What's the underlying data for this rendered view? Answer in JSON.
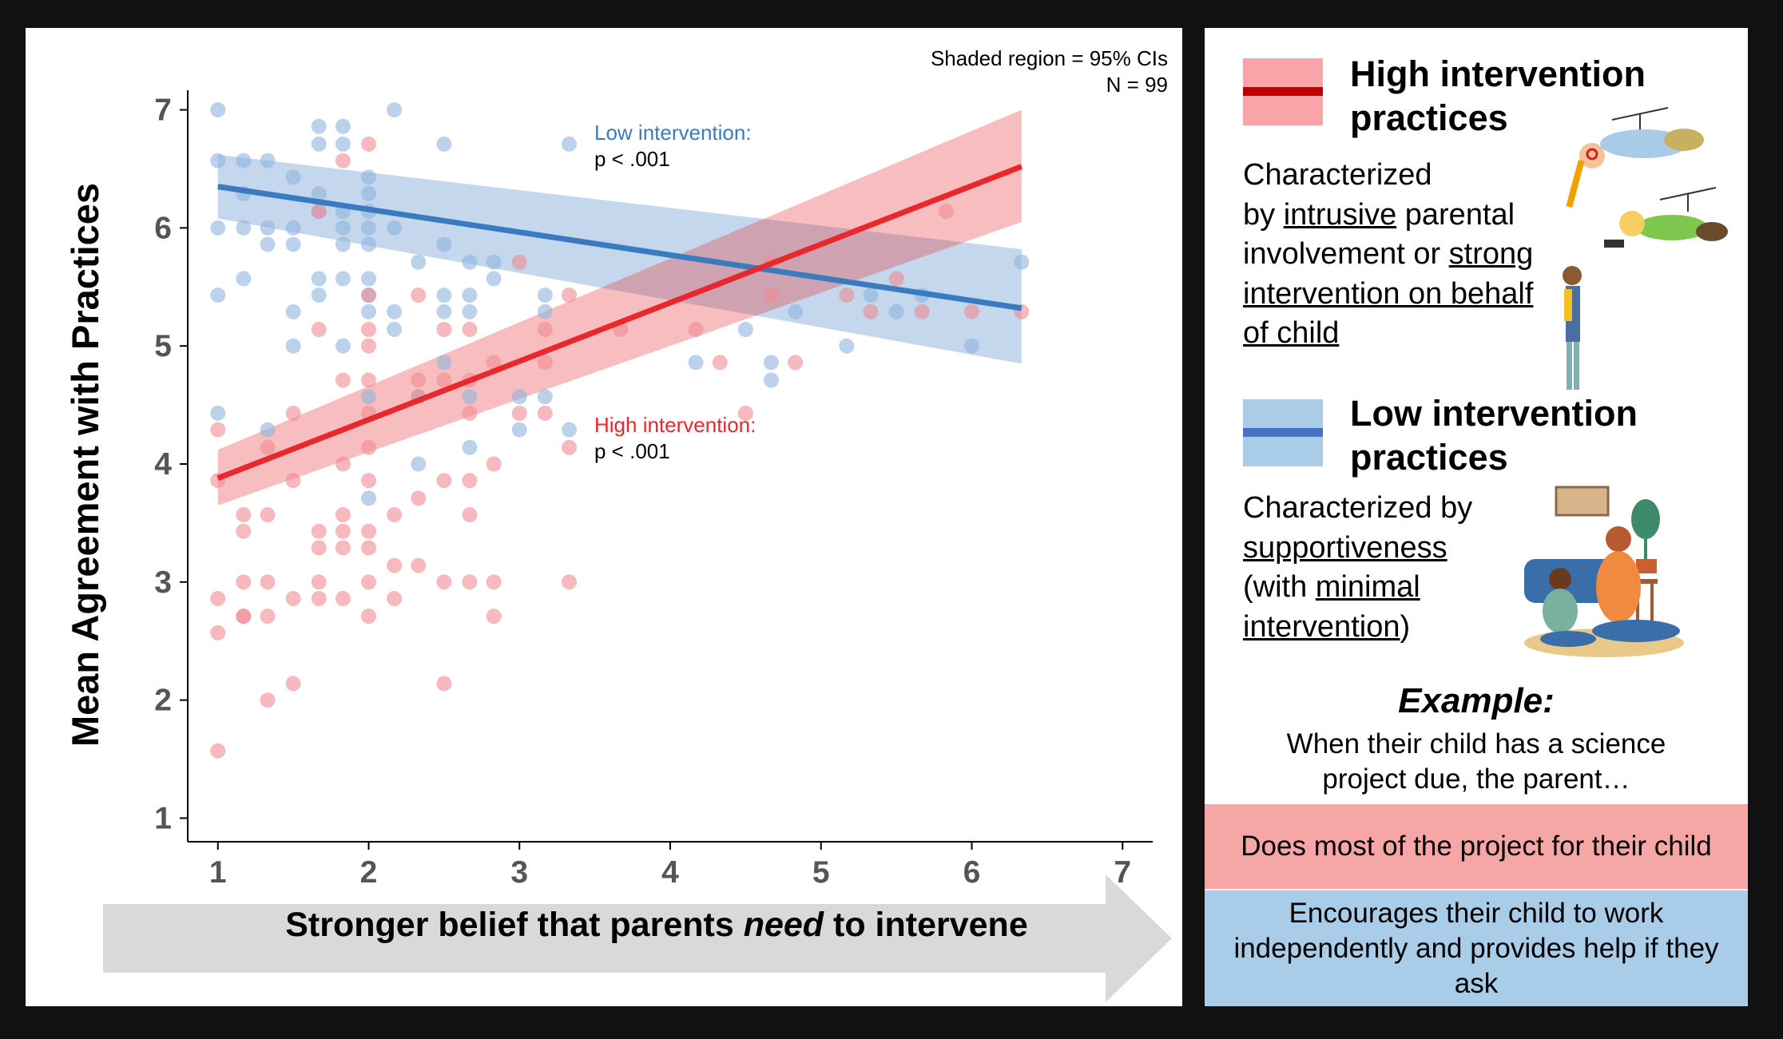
{
  "chart_data": {
    "type": "scatter",
    "ylabel": "Mean Agreement with Practices",
    "xlabel_parts": [
      "Stronger belief that parents ",
      "need",
      " to intervene"
    ],
    "xlim": [
      0.8,
      7.2
    ],
    "ylim": [
      0.8,
      7.2
    ],
    "x_ticks": [
      1,
      2,
      3,
      4,
      5,
      6,
      7
    ],
    "y_ticks": [
      1,
      2,
      3,
      4,
      5,
      6,
      7
    ],
    "grid": false,
    "annotation_top_right": [
      "Shaded region = 95% CIs",
      "N = 99"
    ],
    "series": [
      {
        "name": "Low intervention practices",
        "color": "#3a7bbf",
        "point_color": "#8fb4dd",
        "line_label": "Low intervention:",
        "line_p": "p < .001",
        "fit": {
          "x": [
            1.0,
            6.33
          ],
          "y": [
            6.35,
            5.32
          ]
        },
        "ci": {
          "upper": [
            6.62,
            5.82
          ],
          "lower": [
            6.08,
            4.85
          ]
        },
        "points": [
          [
            1,
            7
          ],
          [
            1,
            6.57
          ],
          [
            1,
            6
          ],
          [
            1,
            5.43
          ],
          [
            1,
            4.43
          ],
          [
            1.17,
            6.57
          ],
          [
            1.17,
            6.29
          ],
          [
            1.17,
            6
          ],
          [
            1.17,
            5.57
          ],
          [
            1.33,
            6.57
          ],
          [
            1.33,
            6
          ],
          [
            1.33,
            5.86
          ],
          [
            1.33,
            4.29
          ],
          [
            1.5,
            6.43
          ],
          [
            1.5,
            6
          ],
          [
            1.5,
            5.86
          ],
          [
            1.5,
            5.29
          ],
          [
            1.5,
            5
          ],
          [
            1.67,
            6.86
          ],
          [
            1.67,
            6.71
          ],
          [
            1.67,
            6.29
          ],
          [
            1.67,
            6.14
          ],
          [
            1.67,
            5.57
          ],
          [
            1.67,
            5.43
          ],
          [
            1.83,
            6.86
          ],
          [
            1.83,
            6.71
          ],
          [
            1.83,
            6.14
          ],
          [
            1.83,
            6
          ],
          [
            1.83,
            5.57
          ],
          [
            1.83,
            5.86
          ],
          [
            1.83,
            5
          ],
          [
            2,
            6.43
          ],
          [
            2,
            6.29
          ],
          [
            2,
            6.14
          ],
          [
            2,
            6
          ],
          [
            2,
            5.86
          ],
          [
            2,
            5.57
          ],
          [
            2,
            5.43
          ],
          [
            2,
            5.29
          ],
          [
            2,
            4.57
          ],
          [
            2,
            3.71
          ],
          [
            2.17,
            7
          ],
          [
            2.17,
            6
          ],
          [
            2.17,
            5.29
          ],
          [
            2.17,
            5.14
          ],
          [
            2.33,
            5.71
          ],
          [
            2.33,
            4.57
          ],
          [
            2.33,
            4
          ],
          [
            2.5,
            6.71
          ],
          [
            2.5,
            5.86
          ],
          [
            2.5,
            5.43
          ],
          [
            2.5,
            5.29
          ],
          [
            2.5,
            4.86
          ],
          [
            2.67,
            5.71
          ],
          [
            2.67,
            5.43
          ],
          [
            2.67,
            5.29
          ],
          [
            2.67,
            4.57
          ],
          [
            2.67,
            4.14
          ],
          [
            2.83,
            5.71
          ],
          [
            2.83,
            5.57
          ],
          [
            3,
            4.57
          ],
          [
            3,
            4.29
          ],
          [
            3.17,
            5.43
          ],
          [
            3.17,
            5.29
          ],
          [
            3.17,
            4.57
          ],
          [
            3.33,
            6.71
          ],
          [
            3.33,
            4.29
          ],
          [
            4.17,
            4.86
          ],
          [
            4.5,
            5.14
          ],
          [
            4.67,
            4.86
          ],
          [
            4.67,
            4.71
          ],
          [
            4.83,
            5.29
          ],
          [
            5.17,
            5
          ],
          [
            5.33,
            5.43
          ],
          [
            5.5,
            5.29
          ],
          [
            5.67,
            5.43
          ],
          [
            6,
            5
          ],
          [
            6.33,
            5.71
          ]
        ]
      },
      {
        "name": "High intervention practices",
        "color": "#e8282c",
        "point_color": "#f08a93",
        "line_label": "High intervention:",
        "line_p": "p < .001",
        "fit": {
          "x": [
            1.0,
            6.33
          ],
          "y": [
            3.88,
            6.52
          ]
        },
        "ci": {
          "upper": [
            4.12,
            7.0
          ],
          "lower": [
            3.65,
            6.05
          ]
        },
        "points": [
          [
            1,
            4.29
          ],
          [
            1,
            3.86
          ],
          [
            1,
            2.86
          ],
          [
            1,
            2.57
          ],
          [
            1,
            1.57
          ],
          [
            1.17,
            3.57
          ],
          [
            1.17,
            3.43
          ],
          [
            1.17,
            3
          ],
          [
            1.17,
            2.71
          ],
          [
            1.17,
            2.71
          ],
          [
            1.33,
            4.14
          ],
          [
            1.33,
            3.57
          ],
          [
            1.33,
            3
          ],
          [
            1.33,
            2.71
          ],
          [
            1.33,
            2
          ],
          [
            1.5,
            4.43
          ],
          [
            1.5,
            3.86
          ],
          [
            1.5,
            2.86
          ],
          [
            1.5,
            2.14
          ],
          [
            1.67,
            6.14
          ],
          [
            1.67,
            5.14
          ],
          [
            1.67,
            3.43
          ],
          [
            1.67,
            3.29
          ],
          [
            1.67,
            3
          ],
          [
            1.67,
            2.86
          ],
          [
            1.83,
            6.57
          ],
          [
            1.83,
            4.71
          ],
          [
            1.83,
            4
          ],
          [
            1.83,
            3.57
          ],
          [
            1.83,
            3.43
          ],
          [
            1.83,
            3.29
          ],
          [
            1.83,
            2.86
          ],
          [
            2,
            6.71
          ],
          [
            2,
            5.43
          ],
          [
            2,
            5.14
          ],
          [
            2,
            5
          ],
          [
            2,
            4.71
          ],
          [
            2,
            4.43
          ],
          [
            2,
            4.14
          ],
          [
            2,
            3.86
          ],
          [
            2,
            3.43
          ],
          [
            2,
            3.29
          ],
          [
            2,
            3
          ],
          [
            2,
            2.71
          ],
          [
            2.17,
            3.57
          ],
          [
            2.17,
            3.14
          ],
          [
            2.17,
            2.86
          ],
          [
            2.33,
            5.43
          ],
          [
            2.33,
            4.71
          ],
          [
            2.33,
            4.57
          ],
          [
            2.33,
            3.71
          ],
          [
            2.33,
            3.14
          ],
          [
            2.5,
            5.14
          ],
          [
            2.5,
            4.71
          ],
          [
            2.5,
            3.86
          ],
          [
            2.5,
            3
          ],
          [
            2.5,
            2.14
          ],
          [
            2.67,
            5.14
          ],
          [
            2.67,
            4.71
          ],
          [
            2.67,
            4.43
          ],
          [
            2.67,
            3.86
          ],
          [
            2.67,
            3.57
          ],
          [
            2.67,
            3
          ],
          [
            2.83,
            4.86
          ],
          [
            2.83,
            4
          ],
          [
            2.83,
            3
          ],
          [
            2.83,
            2.71
          ],
          [
            3,
            5.71
          ],
          [
            3,
            4.43
          ],
          [
            3.17,
            5.14
          ],
          [
            3.17,
            4.86
          ],
          [
            3.17,
            4.43
          ],
          [
            3.33,
            5.43
          ],
          [
            3.33,
            4.14
          ],
          [
            3.33,
            3
          ],
          [
            3.67,
            5.14
          ],
          [
            4.17,
            5.14
          ],
          [
            4.33,
            4.86
          ],
          [
            4.5,
            4.43
          ],
          [
            4.67,
            5.71
          ],
          [
            4.67,
            5.43
          ],
          [
            4.83,
            4.86
          ],
          [
            5.17,
            5.43
          ],
          [
            5.33,
            5.29
          ],
          [
            5.5,
            5.57
          ],
          [
            5.67,
            5.29
          ],
          [
            5.83,
            6.14
          ],
          [
            6,
            5.29
          ],
          [
            6.33,
            5.29
          ]
        ]
      }
    ]
  },
  "legend": {
    "high": {
      "title": "High intervention practices",
      "desc_parts": [
        {
          "t": "Characterized",
          "u": false,
          "br": true
        },
        {
          "t": "by ",
          "u": false
        },
        {
          "t": "intrusive",
          "u": true
        },
        {
          "t": " parental",
          "u": false,
          "br": true
        },
        {
          "t": "involvement or ",
          "u": false
        },
        {
          "t": "strong",
          "u": true,
          "br": true
        },
        {
          "t": "intervention on behalf",
          "u": true,
          "br": true
        },
        {
          "t": "of child",
          "u": true
        }
      ],
      "swatch_fill": "#f8a4a8",
      "swatch_line": "#c00000"
    },
    "low": {
      "title": "Low intervention practices",
      "desc_parts": [
        {
          "t": "Characterized by",
          "u": false,
          "br": true
        },
        {
          "t": "supportiveness",
          "u": true,
          "br": true
        },
        {
          "t": "(with ",
          "u": false
        },
        {
          "t": "minimal",
          "u": true,
          "br": true
        },
        {
          "t": "intervention",
          "u": true
        },
        {
          "t": ")",
          "u": false
        }
      ],
      "swatch_fill": "#a9cce9",
      "swatch_line": "#4472c4"
    }
  },
  "example": {
    "title": "Example:",
    "text": "When their child has a science project due, the parent…",
    "high_answer": "Does most of the project for their child",
    "low_answer": "Encourages their child to work independently and provides help if they ask"
  }
}
